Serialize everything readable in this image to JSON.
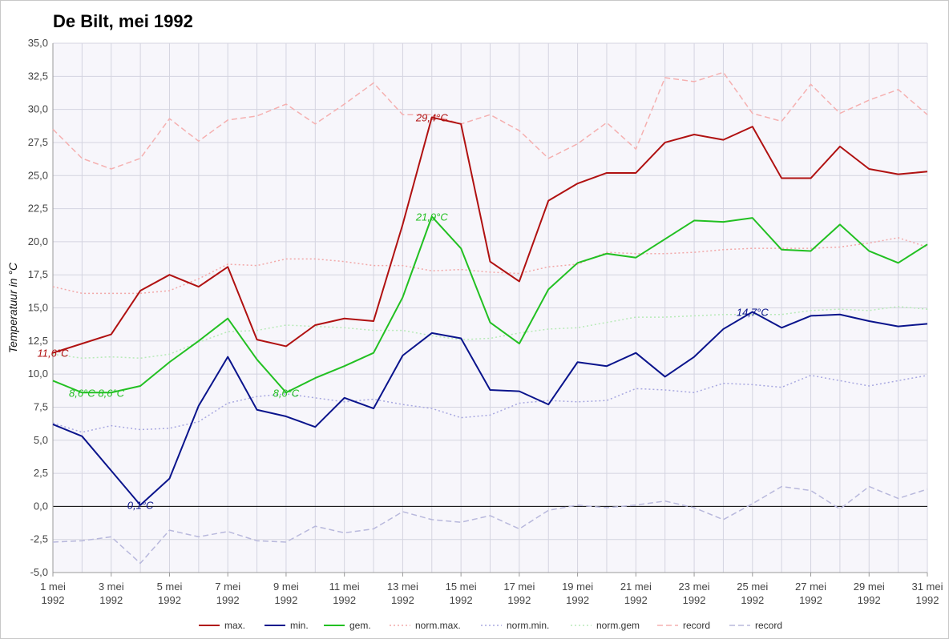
{
  "chart_data": {
    "type": "line",
    "title": "De Bilt, mei 1992",
    "ylabel": "Temperatuur in °C",
    "xlabel": "",
    "ylim": [
      -5,
      35
    ],
    "ytick_step": 2.5,
    "grid": true,
    "legend_position": "bottom",
    "x": [
      1,
      2,
      3,
      4,
      5,
      6,
      7,
      8,
      9,
      10,
      11,
      12,
      13,
      14,
      15,
      16,
      17,
      18,
      19,
      20,
      21,
      22,
      23,
      24,
      25,
      26,
      27,
      28,
      29,
      30,
      31
    ],
    "x_tick_labels": [
      {
        "day": 1,
        "line1": "1 mei",
        "line2": "1992"
      },
      {
        "day": 3,
        "line1": "3 mei",
        "line2": "1992"
      },
      {
        "day": 5,
        "line1": "5 mei",
        "line2": "1992"
      },
      {
        "day": 7,
        "line1": "7 mei",
        "line2": "1992"
      },
      {
        "day": 9,
        "line1": "9 mei",
        "line2": "1992"
      },
      {
        "day": 11,
        "line1": "11 mei",
        "line2": "1992"
      },
      {
        "day": 13,
        "line1": "13 mei",
        "line2": "1992"
      },
      {
        "day": 15,
        "line1": "15 mei",
        "line2": "1992"
      },
      {
        "day": 17,
        "line1": "17 mei",
        "line2": "1992"
      },
      {
        "day": 19,
        "line1": "19 mei",
        "line2": "1992"
      },
      {
        "day": 21,
        "line1": "21 mei",
        "line2": "1992"
      },
      {
        "day": 23,
        "line1": "23 mei",
        "line2": "1992"
      },
      {
        "day": 25,
        "line1": "25 mei",
        "line2": "1992"
      },
      {
        "day": 27,
        "line1": "27 mei",
        "line2": "1992"
      },
      {
        "day": 29,
        "line1": "29 mei",
        "line2": "1992"
      },
      {
        "day": 31,
        "line1": "31 mei",
        "line2": "1992"
      }
    ],
    "series": [
      {
        "name": "max.",
        "color": "#b01111",
        "dash": "",
        "width": 2,
        "values": [
          11.6,
          12.3,
          13.0,
          16.3,
          17.5,
          16.6,
          18.1,
          12.6,
          12.1,
          13.7,
          14.2,
          14.0,
          21.3,
          29.4,
          28.9,
          18.5,
          17.0,
          23.1,
          24.4,
          25.2,
          25.2,
          27.5,
          28.1,
          27.7,
          28.7,
          24.8,
          24.8,
          27.2,
          25.5,
          25.1,
          25.3
        ]
      },
      {
        "name": "min.",
        "color": "#0a148c",
        "dash": "",
        "width": 2,
        "values": [
          6.2,
          5.3,
          2.7,
          0.1,
          2.1,
          7.6,
          11.3,
          7.3,
          6.8,
          6.0,
          8.2,
          7.4,
          11.4,
          13.1,
          12.7,
          8.8,
          8.7,
          7.7,
          10.9,
          10.6,
          11.6,
          9.8,
          11.3,
          13.4,
          14.7,
          13.5,
          14.4,
          14.5,
          14.0,
          13.6,
          13.8
        ]
      },
      {
        "name": "gem.",
        "color": "#22c022",
        "dash": "",
        "width": 2,
        "values": [
          9.5,
          8.6,
          8.6,
          9.1,
          10.9,
          12.5,
          14.2,
          11.1,
          8.6,
          9.7,
          10.6,
          11.6,
          15.8,
          21.9,
          19.5,
          13.9,
          12.3,
          16.4,
          18.4,
          19.1,
          18.8,
          20.2,
          21.6,
          21.5,
          21.8,
          19.4,
          19.3,
          21.3,
          19.3,
          18.4,
          19.8
        ]
      },
      {
        "name": "norm.max.",
        "color": "#f2a8a8",
        "dash": "2,3",
        "width": 1.5,
        "values": [
          16.6,
          16.1,
          16.1,
          16.1,
          16.3,
          17.2,
          18.3,
          18.2,
          18.7,
          18.7,
          18.5,
          18.2,
          18.2,
          17.8,
          17.9,
          17.7,
          17.6,
          18.1,
          18.3,
          19.2,
          19.1,
          19.1,
          19.2,
          19.4,
          19.5,
          19.5,
          19.5,
          19.6,
          19.9,
          20.3,
          19.6
        ]
      },
      {
        "name": "norm.min.",
        "color": "#a8a8e0",
        "dash": "2,3",
        "width": 1.5,
        "values": [
          6.3,
          5.6,
          6.1,
          5.8,
          5.9,
          6.4,
          7.8,
          8.3,
          8.5,
          8.2,
          7.9,
          8.1,
          7.7,
          7.4,
          6.7,
          6.9,
          7.8,
          8.0,
          7.9,
          8.0,
          8.9,
          8.8,
          8.6,
          9.3,
          9.2,
          9.0,
          9.9,
          9.5,
          9.1,
          9.5,
          9.9
        ]
      },
      {
        "name": "norm.gem",
        "color": "#b8eab8",
        "dash": "2,3",
        "width": 1.5,
        "values": [
          11.5,
          11.2,
          11.3,
          11.2,
          11.5,
          12.4,
          13.2,
          13.3,
          13.7,
          13.6,
          13.5,
          13.3,
          13.3,
          12.9,
          12.6,
          12.7,
          13.1,
          13.4,
          13.5,
          13.9,
          14.3,
          14.3,
          14.4,
          14.5,
          14.5,
          14.5,
          14.8,
          14.9,
          14.8,
          15.1,
          14.9
        ]
      },
      {
        "name": "record",
        "color": "#f5b0b0",
        "dash": "7,4",
        "width": 1.5,
        "values": [
          28.5,
          26.3,
          25.5,
          26.3,
          29.3,
          27.6,
          29.2,
          29.5,
          30.4,
          28.9,
          30.4,
          32.0,
          29.6,
          29.6,
          28.9,
          29.6,
          28.4,
          26.3,
          27.4,
          29.0,
          27.0,
          32.4,
          32.1,
          32.8,
          29.7,
          29.1,
          31.9,
          29.7,
          30.7,
          31.5,
          29.6
        ]
      },
      {
        "name": "record",
        "color": "#b8b8dc",
        "dash": "7,4",
        "width": 1.5,
        "values": [
          -2.7,
          -2.6,
          -2.3,
          -4.3,
          -1.8,
          -2.3,
          -1.9,
          -2.6,
          -2.7,
          -1.5,
          -2.0,
          -1.7,
          -0.4,
          -1.0,
          -1.2,
          -0.7,
          -1.7,
          -0.3,
          0.1,
          -0.1,
          0.1,
          0.4,
          -0.1,
          -1.0,
          0.2,
          1.5,
          1.2,
          -0.2,
          1.5,
          0.6,
          1.3
        ]
      }
    ],
    "annotations": [
      {
        "text": "11,6°C",
        "day": 1,
        "value": 11.6,
        "color": "#b01111"
      },
      {
        "text": "29,4°C",
        "day": 14,
        "value": 29.4,
        "color": "#b01111"
      },
      {
        "text": "21,9°C",
        "day": 14,
        "value": 21.9,
        "color": "#22c022"
      },
      {
        "text": "8,6°C",
        "day": 2,
        "value": 8.6,
        "color": "#22c022"
      },
      {
        "text": "8,6°C",
        "day": 3,
        "value": 8.6,
        "color": "#22c022"
      },
      {
        "text": "8,6°C",
        "day": 9,
        "value": 8.6,
        "color": "#22c022"
      },
      {
        "text": "0,1°C",
        "day": 4,
        "value": 0.1,
        "color": "#0a148c"
      },
      {
        "text": "14,7°C",
        "day": 25,
        "value": 14.7,
        "color": "#0a148c"
      }
    ]
  }
}
